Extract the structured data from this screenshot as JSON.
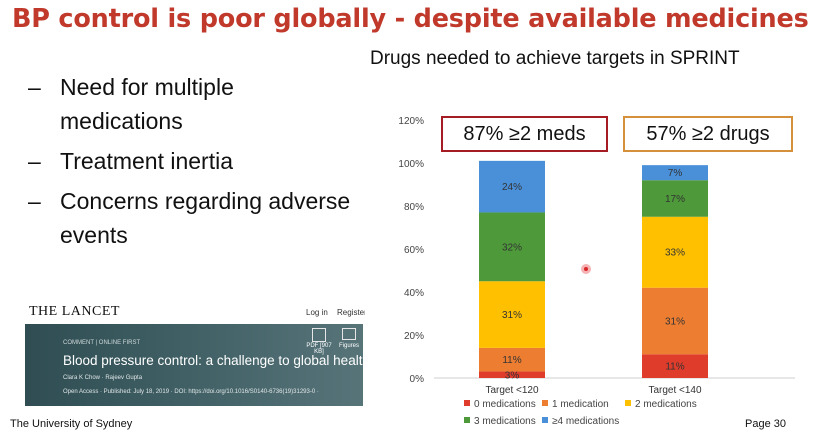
{
  "slide": {
    "title": "BP control is poor globally - despite available medicines",
    "subtitle": "Drugs needed to achieve targets in SPRINT",
    "bullets": [
      "Need for multiple medications",
      "Treatment inertia",
      "Concerns regarding adverse events"
    ],
    "bullet_marker": "–",
    "callout_left": "87% ≥2 meds",
    "callout_right": "57% ≥2 drugs",
    "footer_left": "The University of Sydney",
    "footer_right": "Page 30"
  },
  "lancet": {
    "brand": "THE LANCET",
    "login": "Log in",
    "register": "Register",
    "tag": "COMMENT | ONLINE FIRST",
    "pdf_label": "PDF [907 KB]",
    "figures_label": "Figures",
    "headline": "Blood pressure control: a challenge to global health systems",
    "authors": "Clara K Chow · Rajeev Gupta",
    "published": "Open Access · Published: July 18, 2019 · DOI: https://doi.org/10.1016/S0140-6736(19)31293-0 ·"
  },
  "colors": {
    "title": "#c0392b",
    "box_left_border": "#a51c24",
    "box_right_border": "#d4903a"
  },
  "chart_data": {
    "type": "bar",
    "stacked": true,
    "categories": [
      "Target <120",
      "Target <140"
    ],
    "series": [
      {
        "name": "0 medications",
        "color": "#e03c2c",
        "values": [
          3,
          11
        ]
      },
      {
        "name": "1 medication",
        "color": "#ed7d31",
        "values": [
          11,
          31
        ]
      },
      {
        "name": "2 medications",
        "color": "#ffc000",
        "values": [
          31,
          33
        ]
      },
      {
        "name": "3 medications",
        "color": "#4e9a3a",
        "values": [
          32,
          17
        ]
      },
      {
        "name": "≥4 medications",
        "color": "#4a90d9",
        "values": [
          24,
          7
        ]
      }
    ],
    "data_labels": [
      [
        "3%",
        "11%",
        "31%",
        "32%",
        "24%"
      ],
      [
        "11%",
        "31%",
        "33%",
        "17%",
        "7%"
      ]
    ],
    "yticks": [
      "0%",
      "20%",
      "40%",
      "60%",
      "80%",
      "100%",
      "120%"
    ],
    "ylim": [
      0,
      120
    ],
    "grid": false,
    "legend_position": "bottom"
  }
}
